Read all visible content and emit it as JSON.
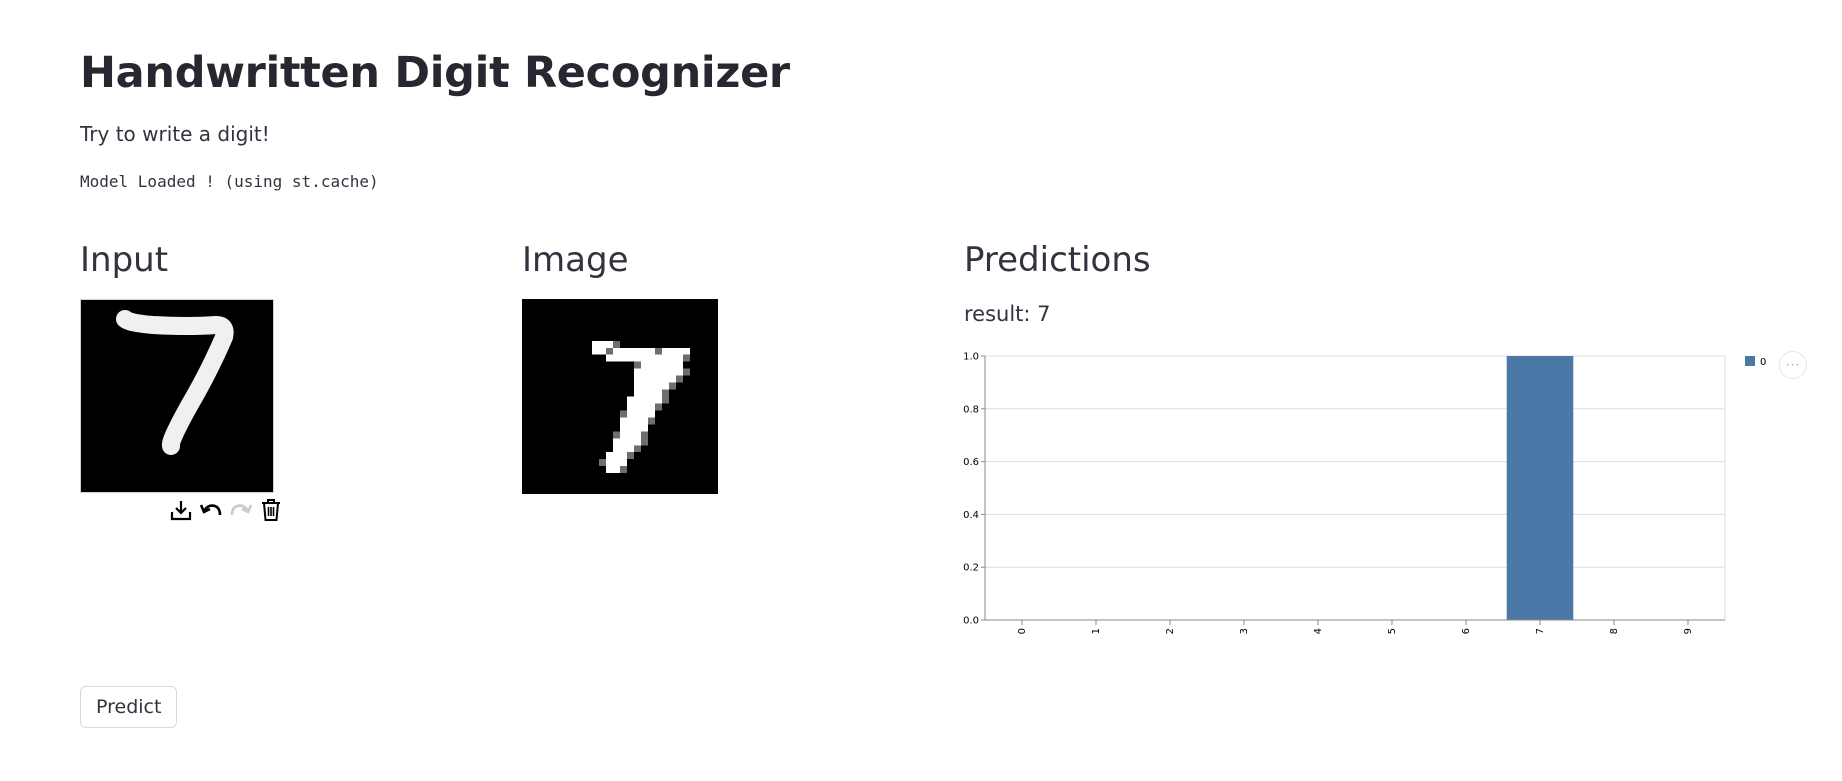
{
  "page": {
    "title": "Handwritten Digit Recognizer",
    "subtitle": "Try to write a digit!",
    "status": "Model Loaded ! (using st.cache)"
  },
  "input_section": {
    "heading": "Input",
    "canvas": {
      "background": "#000000",
      "stroke_color": "#ffffff",
      "drawn_digit": "7"
    },
    "toolbar": [
      {
        "name": "download-icon",
        "enabled": true
      },
      {
        "name": "undo-icon",
        "enabled": true
      },
      {
        "name": "redo-icon",
        "enabled": false
      },
      {
        "name": "trash-icon",
        "enabled": true
      }
    ]
  },
  "image_section": {
    "heading": "Image",
    "pixel_grid_size": 28,
    "pixels_white": [
      [
        6,
        10
      ],
      [
        6,
        11
      ],
      [
        6,
        12
      ],
      [
        7,
        10
      ],
      [
        7,
        11
      ],
      [
        7,
        13
      ],
      [
        7,
        14
      ],
      [
        7,
        15
      ],
      [
        7,
        16
      ],
      [
        7,
        17
      ],
      [
        7,
        18
      ],
      [
        7,
        20
      ],
      [
        7,
        21
      ],
      [
        7,
        22
      ],
      [
        7,
        23
      ],
      [
        8,
        12
      ],
      [
        8,
        13
      ],
      [
        8,
        14
      ],
      [
        8,
        15
      ],
      [
        8,
        16
      ],
      [
        8,
        17
      ],
      [
        8,
        18
      ],
      [
        8,
        19
      ],
      [
        8,
        20
      ],
      [
        8,
        21
      ],
      [
        8,
        22
      ],
      [
        9,
        17
      ],
      [
        9,
        18
      ],
      [
        9,
        19
      ],
      [
        9,
        20
      ],
      [
        9,
        21
      ],
      [
        9,
        22
      ],
      [
        10,
        16
      ],
      [
        10,
        17
      ],
      [
        10,
        18
      ],
      [
        10,
        19
      ],
      [
        10,
        20
      ],
      [
        10,
        21
      ],
      [
        10,
        22
      ],
      [
        11,
        16
      ],
      [
        11,
        17
      ],
      [
        11,
        18
      ],
      [
        11,
        19
      ],
      [
        11,
        20
      ],
      [
        11,
        21
      ],
      [
        12,
        16
      ],
      [
        12,
        17
      ],
      [
        12,
        18
      ],
      [
        12,
        19
      ],
      [
        12,
        20
      ],
      [
        13,
        16
      ],
      [
        13,
        17
      ],
      [
        13,
        18
      ],
      [
        13,
        19
      ],
      [
        14,
        15
      ],
      [
        14,
        16
      ],
      [
        14,
        17
      ],
      [
        14,
        18
      ],
      [
        14,
        19
      ],
      [
        15,
        15
      ],
      [
        15,
        16
      ],
      [
        15,
        17
      ],
      [
        15,
        18
      ],
      [
        16,
        15
      ],
      [
        16,
        16
      ],
      [
        16,
        17
      ],
      [
        16,
        18
      ],
      [
        17,
        14
      ],
      [
        17,
        15
      ],
      [
        17,
        16
      ],
      [
        17,
        17
      ],
      [
        18,
        14
      ],
      [
        18,
        15
      ],
      [
        18,
        16
      ],
      [
        18,
        17
      ],
      [
        19,
        14
      ],
      [
        19,
        15
      ],
      [
        19,
        16
      ],
      [
        20,
        13
      ],
      [
        20,
        14
      ],
      [
        20,
        15
      ],
      [
        20,
        16
      ],
      [
        21,
        13
      ],
      [
        21,
        14
      ],
      [
        21,
        15
      ],
      [
        22,
        12
      ],
      [
        22,
        13
      ],
      [
        22,
        14
      ],
      [
        23,
        12
      ],
      [
        23,
        13
      ],
      [
        23,
        14
      ],
      [
        24,
        12
      ],
      [
        24,
        13
      ]
    ],
    "pixels_gray": [
      [
        6,
        13
      ],
      [
        7,
        12
      ],
      [
        7,
        19
      ],
      [
        8,
        23
      ],
      [
        9,
        16
      ],
      [
        10,
        23
      ],
      [
        11,
        22
      ],
      [
        12,
        21
      ],
      [
        13,
        20
      ],
      [
        14,
        20
      ],
      [
        15,
        19
      ],
      [
        16,
        14
      ],
      [
        17,
        18
      ],
      [
        19,
        13
      ],
      [
        19,
        17
      ],
      [
        20,
        17
      ],
      [
        21,
        16
      ],
      [
        22,
        15
      ],
      [
        23,
        11
      ],
      [
        24,
        14
      ]
    ],
    "background": "#000000",
    "ink": "#ffffff"
  },
  "predictions_section": {
    "heading": "Predictions",
    "result_text": "result: 7",
    "menu_label": "···"
  },
  "chart_data": {
    "type": "bar",
    "categories": [
      "0",
      "1",
      "2",
      "3",
      "4",
      "5",
      "6",
      "7",
      "8",
      "9"
    ],
    "series": [
      {
        "name": "0",
        "values": [
          0,
          0,
          0,
          0,
          0,
          0,
          0,
          1.0,
          0,
          0
        ]
      }
    ],
    "yticks": [
      "0.0",
      "0.2",
      "0.4",
      "0.6",
      "0.8",
      "1.0"
    ],
    "ylim": [
      0,
      1
    ],
    "grid": true,
    "legend": "top-right",
    "bar_color": "#4c78a8"
  },
  "predict_button": {
    "label": "Predict"
  }
}
